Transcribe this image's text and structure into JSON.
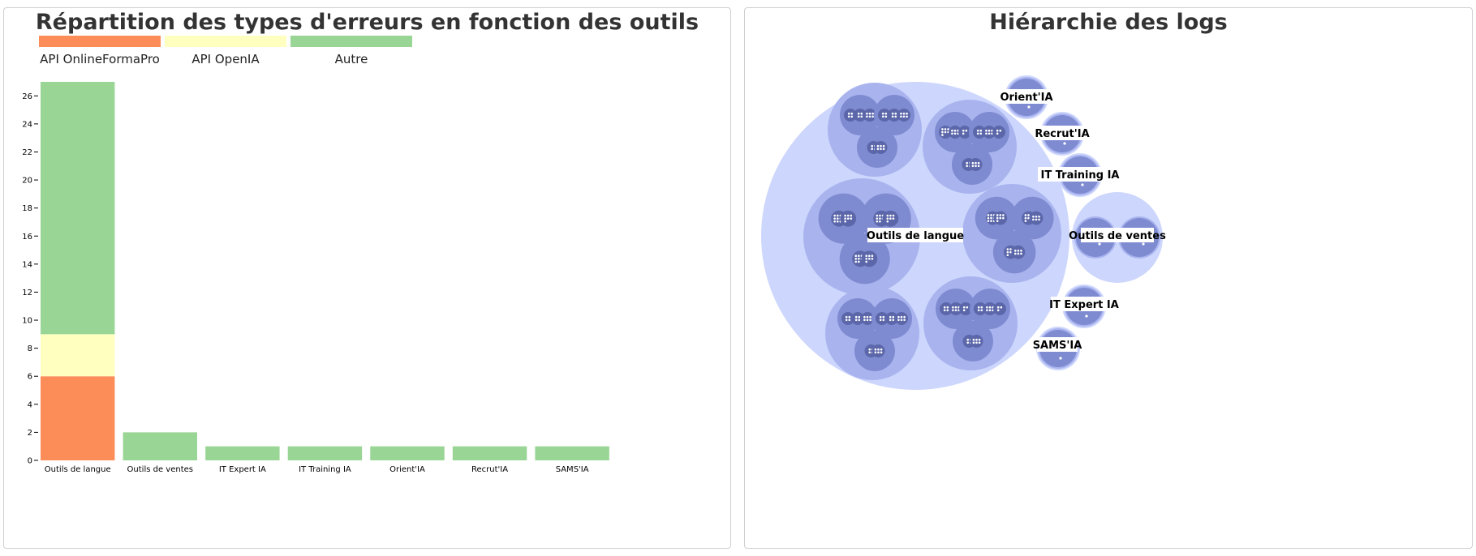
{
  "chart_data": [
    {
      "type": "bar",
      "stacked": true,
      "title": "Répartition des types d'erreurs en fonction des outils",
      "categories": [
        "Outils de langue",
        "Outils de ventes",
        "IT Expert IA",
        "IT Training IA",
        "Orient'IA",
        "Recrut'IA",
        "SAMS'IA"
      ],
      "series": [
        {
          "name": "API OnlineFormaPro",
          "color": "#fc8d59",
          "values": [
            6,
            0,
            0,
            0,
            0,
            0,
            0
          ]
        },
        {
          "name": "API OpenIA",
          "color": "#ffffbf",
          "values": [
            3,
            0,
            0,
            0,
            0,
            0,
            0
          ]
        },
        {
          "name": "Autre",
          "color": "#99d594",
          "values": [
            18,
            2,
            1,
            1,
            1,
            1,
            1
          ]
        }
      ],
      "ylim": [
        0,
        27
      ],
      "yticks": [
        0,
        2,
        4,
        6,
        8,
        10,
        12,
        14,
        16,
        18,
        20,
        22,
        24,
        26
      ],
      "legend_position": "top-left",
      "grid": false
    },
    {
      "type": "circle-packing",
      "title": "Hiérarchie des logs",
      "colors": {
        "depth1": "#cdd6fc",
        "depth2": "#a9b4ef",
        "depth3": "#7e8bd1",
        "depth4": "#5c67aa",
        "leaf": "#ffffff"
      },
      "nodes": [
        {
          "label": "Outils de langue",
          "groups": [
            [
              [
                4,
                4,
                6
              ],
              [
                4,
                4,
                6
              ],
              [
                4,
                6
              ]
            ],
            [
              [
                7,
                6,
                3
              ],
              [
                4,
                6,
                3
              ],
              [
                4,
                6
              ]
            ],
            [
              [
                12,
                7
              ],
              [
                10,
                7
              ],
              [
                10,
                7
              ]
            ],
            [
              [
                12,
                7
              ],
              [
                7,
                6
              ],
              [
                7,
                6
              ]
            ],
            [
              [
                4,
                4,
                6
              ],
              [
                4,
                4,
                6
              ],
              [
                4,
                6
              ]
            ],
            [
              [
                4,
                6,
                3
              ],
              [
                4,
                6,
                3
              ],
              [
                4,
                6
              ]
            ]
          ]
        },
        {
          "label": "Outils de ventes",
          "groups": [
            [
              [
                1
              ]
            ],
            [
              [
                1
              ]
            ]
          ]
        },
        {
          "label": "IT Expert IA",
          "groups": [
            [
              [
                1
              ]
            ]
          ]
        },
        {
          "label": "IT Training IA",
          "groups": [
            [
              [
                1
              ]
            ]
          ]
        },
        {
          "label": "Orient'IA",
          "groups": [
            [
              [
                1
              ]
            ]
          ]
        },
        {
          "label": "Recrut'IA",
          "groups": [
            [
              [
                1
              ]
            ]
          ]
        },
        {
          "label": "SAMS'IA",
          "groups": [
            [
              [
                1
              ]
            ]
          ]
        }
      ]
    }
  ]
}
